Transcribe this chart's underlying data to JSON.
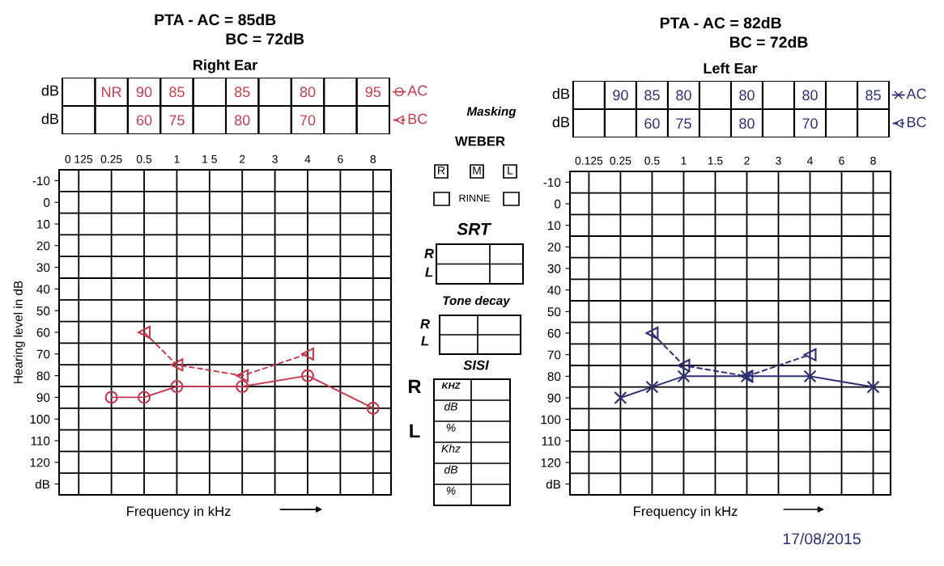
{
  "chart_data": [
    {
      "type": "line",
      "title": "PTA - AC = 85dB",
      "subtitle": "BC = 72dB",
      "annotations": [
        "Right Ear",
        "dB",
        "dB"
      ],
      "xlabel": "Frequency in kHz",
      "ylabel": "Hearing level in dB",
      "legend": "top right",
      "categories": [
        "0 125",
        "0.25",
        "0.5",
        "1",
        "1 5",
        "2",
        "3",
        "4",
        "6",
        "8"
      ],
      "ylim": [
        135,
        -15
      ],
      "yticks": [
        -10,
        0,
        10,
        20,
        30,
        40,
        50,
        60,
        70,
        80,
        90,
        100,
        110,
        120,
        {
          "value": 130,
          "label": "dB"
        }
      ],
      "grid": true,
      "series": [
        {
          "name": "AC",
          "color": "#c23b4e",
          "marker": "circle",
          "line_style": "solid",
          "values": [
            null,
            90,
            90,
            85,
            null,
            85,
            null,
            80,
            null,
            95
          ],
          "value_labels": [
            null,
            "NR",
            "90",
            "85",
            null,
            "85",
            null,
            "80",
            null,
            "95"
          ]
        },
        {
          "name": "BC",
          "color": "#c23b4e",
          "marker": "triangle",
          "line_style": "dashed",
          "values": [
            null,
            null,
            60,
            75,
            null,
            80,
            null,
            70,
            null,
            null
          ],
          "value_labels": [
            null,
            null,
            "60",
            "75",
            null,
            "80",
            null,
            "70",
            null,
            null
          ]
        }
      ]
    },
    {
      "type": "other",
      "annotations": [
        "Masking",
        "WEBER",
        "R",
        "M",
        "L",
        "RINNE",
        "SRT",
        "R",
        "L",
        "Tone decay",
        "R",
        "L",
        "SISI",
        "R",
        "L",
        "KHZ",
        "dB",
        "%",
        "Khz",
        "dB",
        "%"
      ]
    },
    {
      "type": "line",
      "title": "PTA - AC = 82dB",
      "subtitle": "BC = 72dB",
      "annotations": [
        "Left Ear",
        "dB",
        "dB",
        "17/08/2015"
      ],
      "xlabel": "Frequency in kHz",
      "legend": "top right",
      "categories": [
        "0.125",
        "0.25",
        "0.5",
        "1",
        "1.5",
        "2",
        "3",
        "4",
        "6",
        "8"
      ],
      "ylim": [
        135,
        -15
      ],
      "yticks": [
        -10,
        0,
        10,
        20,
        30,
        40,
        50,
        60,
        70,
        80,
        90,
        100,
        110,
        120,
        {
          "value": 130,
          "label": "dB"
        }
      ],
      "grid": true,
      "series": [
        {
          "name": "AC",
          "color": "#2e2f72",
          "marker": "cross",
          "line_style": "solid",
          "values": [
            null,
            90,
            85,
            80,
            null,
            80,
            null,
            80,
            null,
            85
          ],
          "value_labels": [
            null,
            "90",
            "85",
            "80",
            null,
            "80",
            null,
            "80",
            null,
            "85"
          ]
        },
        {
          "name": "BC",
          "color": "#2e2f72",
          "marker": "triangle",
          "line_style": "dashed",
          "values": [
            null,
            null,
            60,
            75,
            null,
            80,
            null,
            70,
            null,
            null
          ],
          "value_labels": [
            null,
            null,
            "60",
            "75",
            null,
            "80",
            null,
            "70",
            null,
            null
          ]
        }
      ]
    }
  ]
}
